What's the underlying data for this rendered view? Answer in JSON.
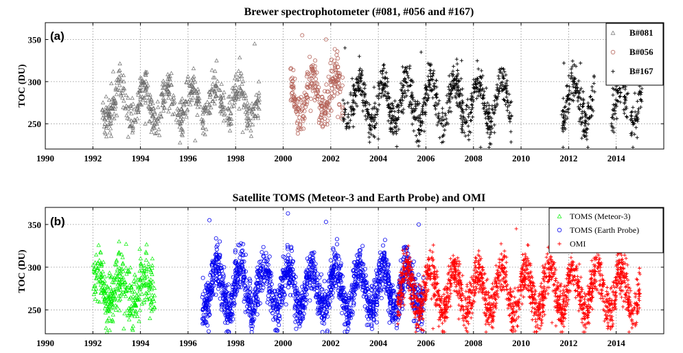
{
  "chart_data": [
    {
      "type": "scatter",
      "panel_tag": "(a)",
      "title": "Brewer  spectrophotometer (#081, #056 and #167)",
      "ylabel": "TOC (DU)",
      "xlabel": "",
      "xlim": [
        1990,
        2016
      ],
      "ylim": [
        220,
        370
      ],
      "xticks": [
        1990,
        1992,
        1994,
        1996,
        1998,
        2000,
        2002,
        2004,
        2006,
        2008,
        2010,
        2012,
        2014
      ],
      "yticks": [
        250,
        300,
        350
      ],
      "grid": true,
      "legend_position": "top-right",
      "series": [
        {
          "name": "B#081",
          "marker": "triangle",
          "color": "#6b6b6b",
          "segments": [
            [
              1992.4,
              1999.0
            ]
          ],
          "mean": 275,
          "amp": 20,
          "noise": 12,
          "phase": 0.15,
          "density": 90,
          "seed": 11,
          "x": [
            1992.5,
            1993.3,
            1994.2,
            1995.3,
            1996.3,
            1997.2,
            1998.3,
            1998.8
          ],
          "y": [
            240,
            300,
            250,
            310,
            230,
            325,
            240,
            345
          ]
        },
        {
          "name": "B#056",
          "marker": "circle",
          "color": "#b5645a",
          "segments": [
            [
              2000.3,
              2002.5
            ]
          ],
          "mean": 285,
          "amp": 25,
          "noise": 12,
          "phase": 0.2,
          "density": 120,
          "seed": 23,
          "x": [
            2000.5,
            2000.8,
            2001.6,
            2001.8,
            2002.3
          ],
          "y": [
            270,
            355,
            250,
            350,
            258
          ]
        },
        {
          "name": "B#167",
          "marker": "plus",
          "color": "#000000",
          "segments": [
            [
              2002.5,
              2009.6
            ],
            [
              2011.7,
              2013.1
            ],
            [
              2013.8,
              2014.5
            ],
            [
              2014.6,
              2015.1
            ]
          ],
          "mean": 275,
          "amp": 25,
          "noise": 12,
          "phase": 0.2,
          "density": 120,
          "seed": 37,
          "x": [
            2002.6,
            2003.2,
            2004.0,
            2005.8,
            2007.5,
            2008.3,
            2011.8,
            2012.5,
            2013.9,
            2014.8
          ],
          "y": [
            340,
            330,
            232,
            335,
            325,
            222,
            322,
            322,
            240,
            300
          ]
        }
      ]
    },
    {
      "type": "scatter",
      "panel_tag": "(b)",
      "title": "Satellite TOMS (Meteor-3 and Earth Probe) and OMI",
      "ylabel": "TOC (DU)",
      "xlabel": "",
      "xlim": [
        1990,
        2016
      ],
      "ylim": [
        222,
        370
      ],
      "xticks": [
        1990,
        1992,
        1994,
        1996,
        1998,
        2000,
        2002,
        2004,
        2006,
        2008,
        2010,
        2012,
        2014
      ],
      "yticks": [
        250,
        300,
        350
      ],
      "grid": true,
      "legend_position": "top-right",
      "series": [
        {
          "name": "TOMS (Meteor-3)",
          "marker": "triangle",
          "color": "#00ee00",
          "segments": [
            [
              1992.0,
              1994.6
            ]
          ],
          "mean": 275,
          "amp": 15,
          "noise": 16,
          "phase": 0.2,
          "density": 140,
          "seed": 51,
          "x": [
            1992.2,
            1993.1,
            1993.3,
            1994.5
          ],
          "y": [
            260,
            330,
            228,
            310
          ]
        },
        {
          "name": "TOMS (Earth Probe)",
          "marker": "circle",
          "color": "#0000ee",
          "segments": [
            [
              1996.6,
              2005.9
            ]
          ],
          "mean": 275,
          "amp": 25,
          "noise": 13,
          "phase": 0.2,
          "density": 200,
          "seed": 67,
          "x": [
            1996.9,
            2000.2,
            2001.8,
            2004.6,
            2005.7
          ],
          "y": [
            355,
            363,
            353,
            238,
            350
          ]
        },
        {
          "name": "OMI",
          "marker": "plus",
          "color": "#ff0000",
          "segments": [
            [
              2004.8,
              2015.0
            ]
          ],
          "mean": 272,
          "amp": 25,
          "noise": 13,
          "phase": 0.2,
          "density": 200,
          "seed": 83,
          "x": [
            2006.3,
            2009.8,
            2011.3,
            2012.8,
            2014.5
          ],
          "y": [
            228,
            345,
            235,
            330,
            320
          ]
        }
      ]
    }
  ]
}
